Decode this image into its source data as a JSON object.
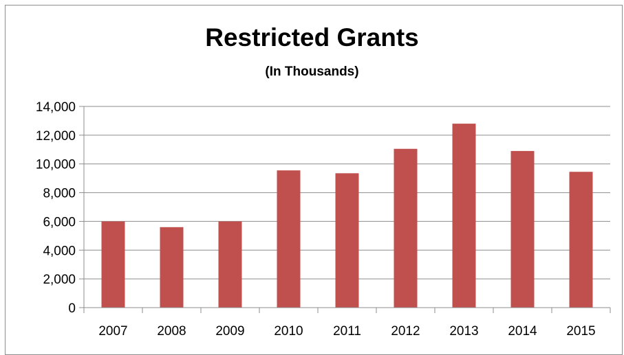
{
  "chart_data": {
    "type": "bar",
    "title": "Restricted Grants",
    "subtitle": "(In Thousands)",
    "xlabel": "",
    "ylabel": "",
    "categories": [
      "2007",
      "2008",
      "2009",
      "2010",
      "2011",
      "2012",
      "2013",
      "2014",
      "2015"
    ],
    "values": [
      6000,
      5600,
      6000,
      9550,
      9350,
      11050,
      12800,
      10900,
      9450
    ],
    "ylim": [
      0,
      14000
    ],
    "yticks": [
      0,
      2000,
      4000,
      6000,
      8000,
      10000,
      12000,
      14000
    ],
    "ytick_labels": [
      "0",
      "2,000",
      "4,000",
      "6,000",
      "8,000",
      "10,000",
      "12,000",
      "14,000"
    ],
    "grid": true,
    "legend": "none",
    "bar_color": "#c0504d"
  }
}
